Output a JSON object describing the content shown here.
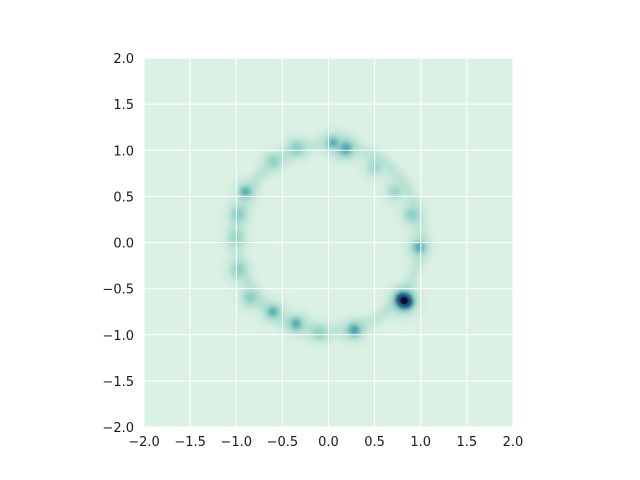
{
  "chart_data": {
    "type": "heatmap",
    "title": "",
    "xlabel": "",
    "ylabel": "",
    "xlim": [
      -2.0,
      2.0
    ],
    "ylim": [
      -2.0,
      2.0
    ],
    "grid": true,
    "aspect": "equal",
    "xticks": [
      "−2.0",
      "−1.5",
      "−1.0",
      "−0.5",
      "0.0",
      "0.5",
      "1.0",
      "1.5",
      "2.0"
    ],
    "yticks": [
      "2.0",
      "1.5",
      "1.0",
      "0.5",
      "0.0",
      "−0.5",
      "−1.0",
      "−1.5",
      "−2.0"
    ],
    "xtick_values": [
      -2.0,
      -1.5,
      -1.0,
      -0.5,
      0.0,
      0.5,
      1.0,
      1.5,
      2.0
    ],
    "ytick_values": [
      2.0,
      1.5,
      1.0,
      0.5,
      0.0,
      -0.5,
      -1.0,
      -1.5,
      -2.0
    ],
    "background_color": "#dcf1e5",
    "colormap": [
      "#dcf1e5",
      "#a8dccc",
      "#4fb3b1",
      "#1f7f9c",
      "#1d3a73",
      "#120a2e"
    ],
    "density_peaks": [
      {
        "x": 0.18,
        "y": 1.02,
        "intensity": 0.55
      },
      {
        "x": 0.05,
        "y": 1.08,
        "intensity": 0.35
      },
      {
        "x": -0.35,
        "y": 1.02,
        "intensity": 0.32
      },
      {
        "x": -0.6,
        "y": 0.88,
        "intensity": 0.22
      },
      {
        "x": -0.9,
        "y": 0.55,
        "intensity": 0.35
      },
      {
        "x": -0.98,
        "y": 0.3,
        "intensity": 0.3
      },
      {
        "x": -1.0,
        "y": 0.05,
        "intensity": 0.22
      },
      {
        "x": -0.98,
        "y": -0.3,
        "intensity": 0.28
      },
      {
        "x": -0.85,
        "y": -0.6,
        "intensity": 0.3
      },
      {
        "x": -0.6,
        "y": -0.75,
        "intensity": 0.35
      },
      {
        "x": -0.35,
        "y": -0.88,
        "intensity": 0.38
      },
      {
        "x": -0.1,
        "y": -0.98,
        "intensity": 0.25
      },
      {
        "x": 0.28,
        "y": -0.95,
        "intensity": 0.45
      },
      {
        "x": 0.82,
        "y": -0.63,
        "intensity": 1.0
      },
      {
        "x": 0.98,
        "y": -0.05,
        "intensity": 0.38
      },
      {
        "x": 0.9,
        "y": 0.3,
        "intensity": 0.28
      },
      {
        "x": 0.72,
        "y": 0.55,
        "intensity": 0.2
      },
      {
        "x": 0.5,
        "y": 0.82,
        "intensity": 0.2
      }
    ]
  }
}
